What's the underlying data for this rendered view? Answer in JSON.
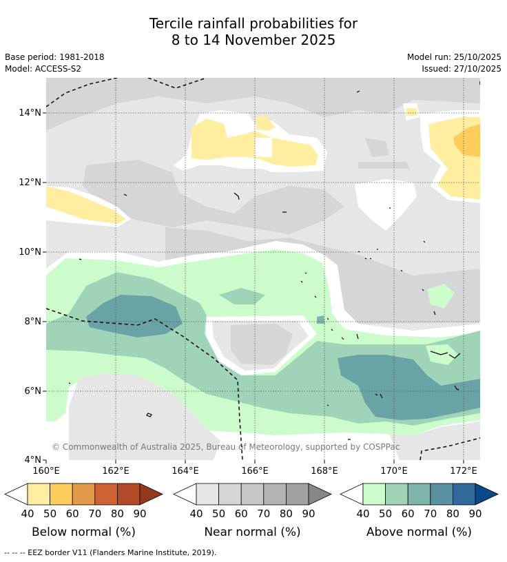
{
  "title": {
    "line1": "Tercile rainfall probabilities for",
    "line2": "8 to 14 November 2025"
  },
  "meta": {
    "base_period": "Base period: 1981-2018",
    "model": "Model: ACCESS-S2",
    "model_run": "Model run: 25/10/2025",
    "issued": "Issued: 27/10/2025"
  },
  "map": {
    "lat_labels": [
      "14°N",
      "12°N",
      "10°N",
      "8°N",
      "6°N",
      "4°N"
    ],
    "lon_labels": [
      "160°E",
      "162°E",
      "164°E",
      "166°E",
      "168°E",
      "170°E",
      "172°E"
    ],
    "copyright": "© Commonwealth of Australia 2025, Bureau of Meteorology, supported by COSPPac"
  },
  "legends": [
    {
      "label": "Below normal (%)",
      "ticks": [
        "40",
        "50",
        "60",
        "70",
        "80",
        "90"
      ],
      "colors": [
        "#ffeda0",
        "#fecc5c",
        "#e3994a",
        "#cf6232",
        "#b24a28",
        "#94381f"
      ]
    },
    {
      "label": "Near normal (%)",
      "ticks": [
        "40",
        "50",
        "60",
        "70",
        "80",
        "90"
      ],
      "colors": [
        "#e6e6e6",
        "#d6d6d6",
        "#c6c6c6",
        "#b3b3b3",
        "#a0a0a0",
        "#878787"
      ]
    },
    {
      "label": "Above normal (%)",
      "ticks": [
        "40",
        "50",
        "60",
        "70",
        "80",
        "90"
      ],
      "colors": [
        "#ccfccc",
        "#9fd4b8",
        "#7fb4aa",
        "#5a919e",
        "#32699c",
        "#0b4888"
      ]
    }
  ],
  "footer": "--  --  -- EEZ border V11 (Flanders Marine Institute, 2019)."
}
